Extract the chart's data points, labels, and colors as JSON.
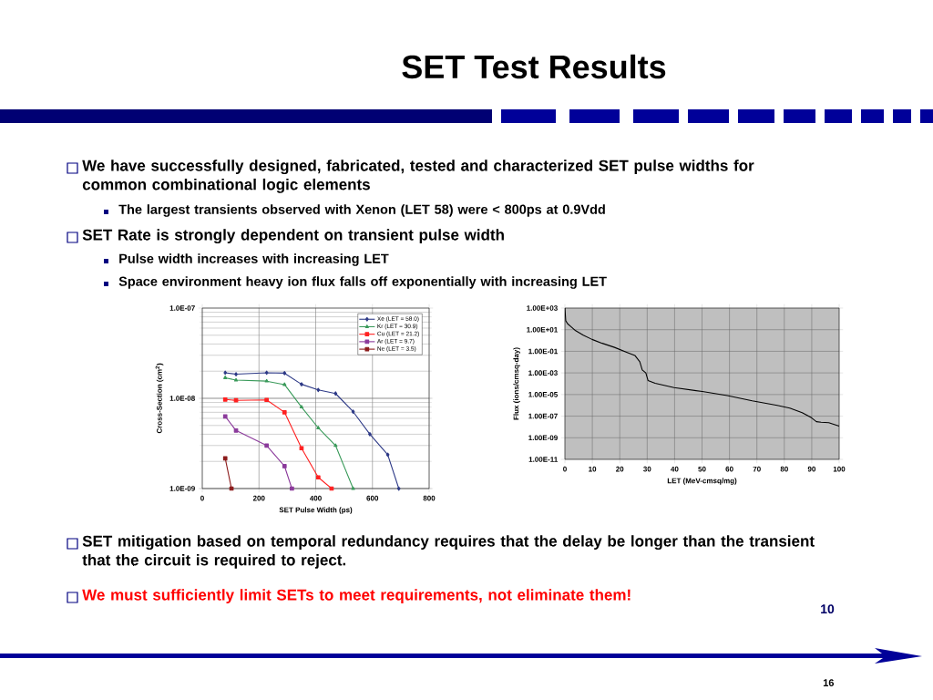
{
  "chart_data": [
    {
      "type": "line",
      "title": "SET Test Results",
      "xlabel": "SET Pulse Width (ps)",
      "ylabel": "Cross-Section (cm$^{2}$)",
      "log": "y",
      "grid": true,
      "legend": "top right",
      "line_style": "solid",
      "xlim": [
        0,
        800
      ],
      "xticks": [
        0,
        200,
        400,
        600,
        800
      ],
      "ylim": [
        1e-09,
        1e-07
      ],
      "yticks": [
        {
          "value": 1e-09,
          "label": "1.0E-09"
        },
        {
          "value": 1e-08,
          "label": "1.0E-08"
        },
        {
          "value": 1e-07,
          "label": "1.0E-07"
        }
      ],
      "series": [
        {
          "name": "Xe (LET = 58.0)",
          "color": "#2e3a87",
          "marker": "diamond",
          "x": [
            81,
            119,
            227,
            290,
            350,
            409,
            470,
            532,
            591,
            654,
            693
          ],
          "values": [
            1.92e-08,
            1.85e-08,
            1.92e-08,
            1.9e-08,
            1.43e-08,
            1.24e-08,
            1.13e-08,
            7.1e-09,
            4e-09,
            2.37e-09,
            1e-09
          ]
        },
        {
          "name": "Kr (LET = 30.9)",
          "color": "#3a9a5a",
          "marker": "triangle",
          "x": [
            81,
            119,
            227,
            290,
            350,
            409,
            470,
            532
          ],
          "values": [
            1.69e-08,
            1.59e-08,
            1.55e-08,
            1.42e-08,
            8e-09,
            4.7e-09,
            3e-09,
            1e-09
          ]
        },
        {
          "name": "Cu (LET = 21.2)",
          "color": "#ff2020",
          "marker": "square",
          "x": [
            81,
            119,
            227,
            290,
            350,
            409,
            456
          ],
          "values": [
            9.7e-09,
            9.5e-09,
            9.6e-09,
            7e-09,
            2.8e-09,
            1.33e-09,
            1e-09
          ]
        },
        {
          "name": "Ar (LET = 9.7)",
          "color": "#8b3a9b",
          "marker": "square",
          "x": [
            81,
            119,
            227,
            290,
            316
          ],
          "values": [
            6.3e-09,
            4.4e-09,
            3e-09,
            1.77e-09,
            1e-09
          ]
        },
        {
          "name": "Ne (LET = 3.5)",
          "color": "#8b1a1a",
          "marker": "square",
          "x": [
            81,
            103
          ],
          "values": [
            2.16e-09,
            1e-09
          ]
        }
      ],
      "annotations": [
        "We have successfully designed, fabricated, tested and characterized SET pulse widths for common combinational logic elements",
        "The largest transients observed with Xenon (LET 58) were < 800ps at 0.9Vdd",
        "SET Rate is strongly dependent on transient pulse width",
        "Pulse width increases with increasing LET",
        "Space environment heavy ion flux falls off exponentially with increasing LET",
        "SET mitigation based on temporal redundancy requires that the delay be longer than the transient that the circuit is required to reject.",
        "We must sufficiently limit SETs to meet requirements, not eliminate them!",
        "10",
        "16"
      ]
    },
    {
      "type": "line",
      "xlabel": "LET (MeV-cmsq/mg)",
      "ylabel": "Flux (ions/cmsq-day)",
      "log": "y",
      "grid": true,
      "marker": "none",
      "line_style": "solid",
      "xlim": [
        0,
        100
      ],
      "xticks": [
        0,
        10,
        20,
        30,
        40,
        50,
        60,
        70,
        80,
        90,
        100
      ],
      "ylim": [
        1e-11,
        1000.0
      ],
      "yticks": [
        {
          "value": 1e-11,
          "label": "1.00E-11"
        },
        {
          "value": 1e-09,
          "label": "1.00E-09"
        },
        {
          "value": 1e-07,
          "label": "1.00E-07"
        },
        {
          "value": 1e-05,
          "label": "1.00E-05"
        },
        {
          "value": 0.001,
          "label": "1.00E-03"
        },
        {
          "value": 0.1,
          "label": "1.00E-01"
        },
        {
          "value": 10,
          "label": "1.00E+01"
        },
        {
          "value": 1000,
          "label": "1.00E+03"
        }
      ],
      "series": [
        {
          "color": "#000000",
          "x": [
            0,
            0.3,
            1.0,
            2.2,
            3.9,
            6.7,
            9.9,
            13.6,
            18.1,
            22.7,
            25.5,
            27.3,
            28.2,
            29.5,
            30.3,
            32.9,
            39.8,
            50.1,
            59.2,
            68.3,
            77.4,
            82.0,
            86.5,
            89.9,
            91.7,
            93.4,
            96.2,
            100
          ],
          "values": [
            1000,
            68,
            35,
            19,
            8.1,
            3.1,
            1.26,
            0.55,
            0.23,
            0.079,
            0.042,
            0.011,
            0.0019,
            0.001,
            0.0002,
            0.00011,
            4.4e-05,
            1.9e-05,
            8.1e-06,
            2.6e-06,
            1e-06,
            5.5e-07,
            2.1e-07,
            7.1e-08,
            3.1e-08,
            2.7e-08,
            2.5e-08,
            1.2e-08
          ]
        }
      ]
    }
  ]
}
